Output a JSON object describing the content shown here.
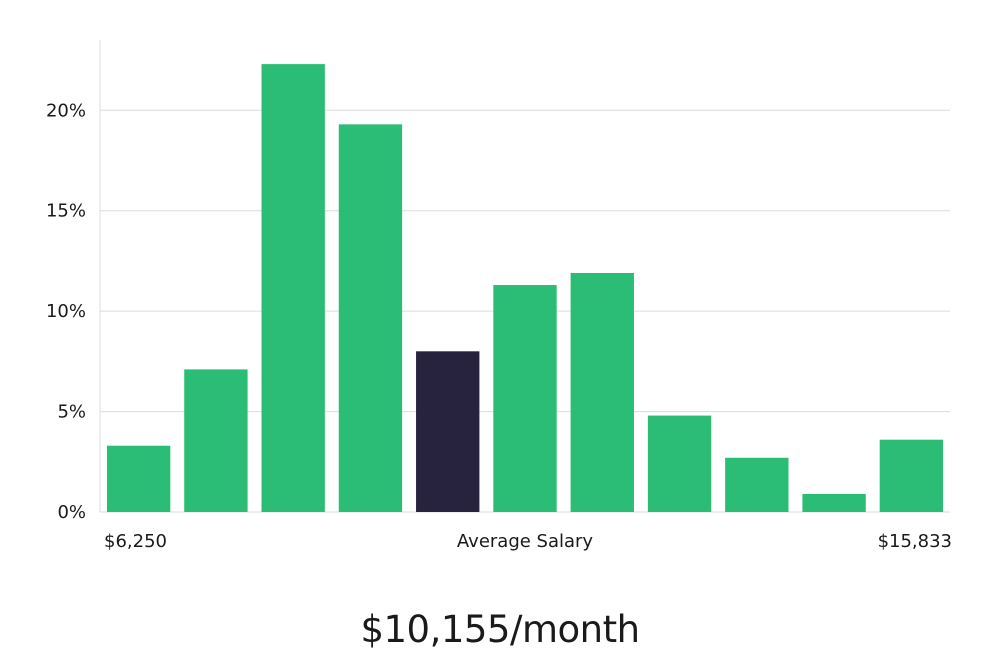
{
  "chart_data": {
    "type": "bar",
    "title": "",
    "xlabel": "Average Salary",
    "ylabel": "",
    "x_min_label": "$6,250",
    "x_max_label": "$15,833",
    "ylim": [
      0,
      23.5
    ],
    "yticks": [
      0,
      5,
      10,
      15,
      20
    ],
    "ytick_labels": [
      "0%",
      "5%",
      "10%",
      "15%",
      "20%"
    ],
    "grid": true,
    "values": [
      3.3,
      7.1,
      22.3,
      19.3,
      8.0,
      11.3,
      11.9,
      4.8,
      2.7,
      0.9,
      3.6
    ],
    "highlight_index": 4,
    "colors": {
      "bar": "#2bbd75",
      "highlight": "#27233f",
      "grid": "#dcdcdc"
    }
  },
  "caption": "$10,155/month"
}
